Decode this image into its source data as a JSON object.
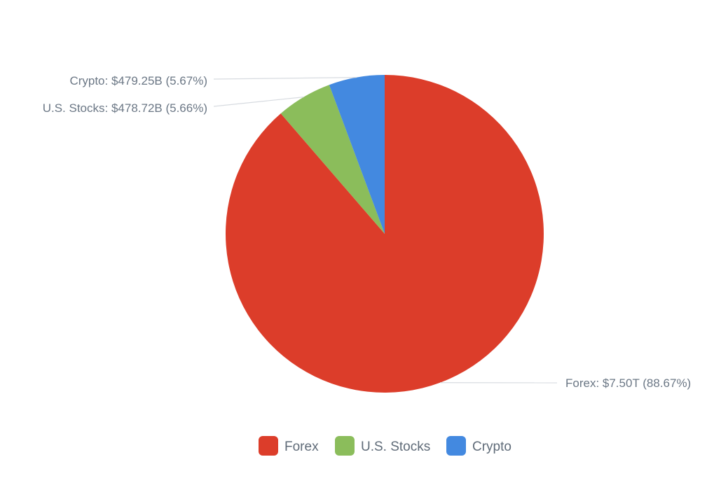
{
  "chart_data": {
    "type": "pie",
    "title": "",
    "start_angle_deg": -90,
    "direction": "clockwise",
    "legend_position": "bottom",
    "slices": [
      {
        "name": "Forex",
        "value": 7.5,
        "unit": "T",
        "percent": 88.67,
        "color": "#dc3d2a",
        "label": "Forex: $7.50T (88.67%)"
      },
      {
        "name": "U.S. Stocks",
        "value": 478.72,
        "unit": "B",
        "percent": 5.66,
        "color": "#8bbd5b",
        "label": "U.S. Stocks: $478.72B (5.66%)"
      },
      {
        "name": "Crypto",
        "value": 479.25,
        "unit": "B",
        "percent": 5.67,
        "color": "#4389e0",
        "label": "Crypto: $479.25B (5.67%)"
      }
    ],
    "legend": [
      {
        "label": "Forex",
        "color": "#dc3d2a"
      },
      {
        "label": "U.S. Stocks",
        "color": "#8bbd5b"
      },
      {
        "label": "Crypto",
        "color": "#4389e0"
      }
    ]
  }
}
